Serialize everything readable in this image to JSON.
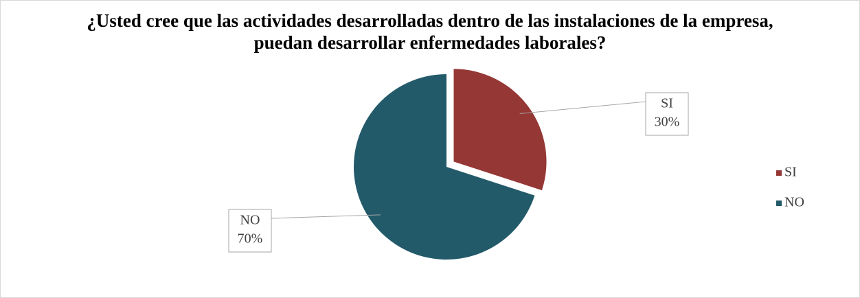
{
  "chart_data": {
    "type": "pie",
    "title": "¿Usted cree que las actividades desarrolladas dentro de las instalaciones de la empresa, puedan desarrollar enfermedades laborales?",
    "categories": [
      "SI",
      "NO"
    ],
    "values": [
      30,
      70
    ],
    "value_labels": [
      "30%",
      "70%"
    ],
    "colors": [
      "#943735",
      "#235a6a"
    ],
    "legend": "right"
  }
}
